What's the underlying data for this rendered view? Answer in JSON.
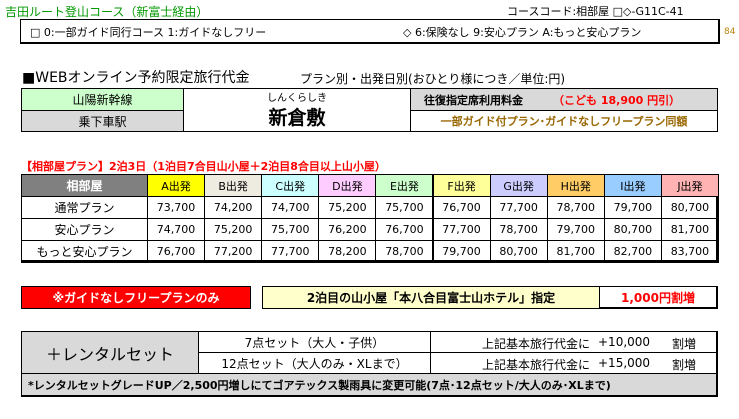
{
  "header": {
    "route_title": "吉田ルート登山コース（新富士経由）",
    "course_code": "コースコード:相部屋 □◇-G11C-41",
    "option_guide": "□ 0:一部ガイド同行コース  1:ガイドなしフリー",
    "option_insurance": "◇ 6:保険なし 9:安心プラン A:もっと安心プラン",
    "page_number": "84"
  },
  "fare_title": "■WEBオンライン予約限定旅行代金",
  "fare_subtitle": "プラン別・出発日別(おひとり様につき／単位:円)",
  "station": {
    "line_name": "山陽新幹線",
    "boarding_label": "乗下車駅",
    "station_ruby": "しんくらしき",
    "station_name": "新倉敷",
    "round_trip_label": "往復指定席利用料金",
    "child_fare": "（こども 18,900 円引）",
    "guide_note": "一部ガイド付プラン･ガイドなしフリープラン同額"
  },
  "lodging_note": "【相部屋プラン】2泊3日（1泊目7合目山小屋＋2泊目8合目以上山小屋）",
  "price_table": {
    "corner_label": "相部屋",
    "columns": [
      {
        "label": "A出発",
        "color": "#ffff00"
      },
      {
        "label": "B出発",
        "color": "#eeece1"
      },
      {
        "label": "C出発",
        "color": "#ccffff"
      },
      {
        "label": "D出発",
        "color": "#ffccff"
      },
      {
        "label": "E出発",
        "color": "#ccffcc"
      },
      {
        "label": "F出発",
        "color": "#ffff99"
      },
      {
        "label": "G出発",
        "color": "#ccccff"
      },
      {
        "label": "H出発",
        "color": "#ffcc66"
      },
      {
        "label": "I出発",
        "color": "#99ccff"
      },
      {
        "label": "J出発",
        "color": "#ffb3b3"
      }
    ],
    "rows": [
      {
        "plan": "通常プラン",
        "prices": [
          "73,700",
          "74,200",
          "74,700",
          "75,200",
          "75,700",
          "76,700",
          "77,700",
          "78,700",
          "79,700",
          "80,700"
        ]
      },
      {
        "plan": "安心プラン",
        "prices": [
          "74,700",
          "75,200",
          "75,700",
          "76,200",
          "76,700",
          "77,700",
          "78,700",
          "79,700",
          "80,700",
          "81,700"
        ]
      },
      {
        "plan": "もっと安心プラン",
        "prices": [
          "76,700",
          "77,200",
          "77,700",
          "78,200",
          "78,700",
          "79,700",
          "80,700",
          "81,700",
          "82,700",
          "83,700"
        ]
      }
    ]
  },
  "free_plan": {
    "label": "※ガイドなしフリープランのみ",
    "hotel_note": "2泊目の山小屋「本八合目富士山ホテル」指定",
    "surcharge": "1,000円割増"
  },
  "rental": {
    "title": "＋レンタルセット",
    "rows": [
      {
        "set": "7点セット（大人・子供）",
        "desc": "上記基本旅行代金に",
        "price": "+10,000",
        "unit": "割増"
      },
      {
        "set": "12点セット（大人のみ・XLまで）",
        "desc": "上記基本旅行代金に",
        "price": "+15,000",
        "unit": "割増"
      }
    ],
    "footnote": "*レンタルセットグレードUP／2,500円増しにてゴアテックス製雨具に変更可能(7点･12点セット/大人のみ･XLまで)"
  },
  "colors": {
    "header_title": "#009900",
    "green_band": "#ccffcc",
    "gray": "#d9d9d9",
    "plan_header": "#808080",
    "red": "#ff0000",
    "child_fare": "#ff0000",
    "guide_note": "#996600",
    "free_plan_bg": "#ff0000",
    "hotel_bg": "#ffffcc",
    "page_number": "#b8860b"
  }
}
